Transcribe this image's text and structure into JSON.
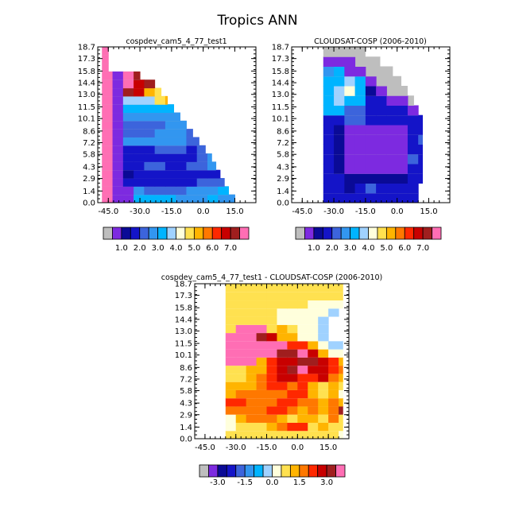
{
  "figure_title": "Tropics ANN",
  "chart_data": [
    {
      "type": "heatmap",
      "id": "model",
      "title": "cospdev_cam5_4_77_test1",
      "x_ticks": [
        "-45.0",
        "-30.0",
        "-15.0",
        "0.0",
        "15.0"
      ],
      "y_ticks": [
        "0.0",
        "1.4",
        "2.9",
        "4.3",
        "5.8",
        "7.2",
        "8.6",
        "10.1",
        "11.5",
        "13.0",
        "14.4",
        "15.8",
        "17.3",
        "18.7"
      ],
      "x_range": [
        -50,
        25
      ],
      "y_range": [
        0,
        18.7
      ],
      "colorbar_labels": [
        "1.0",
        "2.0",
        "3.0",
        "4.0",
        "5.0",
        "6.0",
        "7.0"
      ],
      "colorbar_colors": [
        "#bebebe",
        "#7d2ae0",
        "#0a0a96",
        "#1414c8",
        "#3c64dc",
        "#3296f0",
        "#00b4ff",
        "#a0d2ff",
        "#ffffdc",
        "#ffe150",
        "#ffb400",
        "#ff7800",
        "#ff2800",
        "#c80000",
        "#a01e1e",
        "#ff6eb4"
      ],
      "missing_color": "#bebebe",
      "row_spans": [
        [
          -48,
          15
        ],
        [
          -48,
          12
        ],
        [
          -48,
          10
        ],
        [
          -48,
          8
        ],
        [
          -48,
          6
        ],
        [
          -48,
          4
        ],
        [
          -48,
          1
        ],
        [
          -48,
          -2
        ],
        [
          -48,
          -5
        ],
        [
          -48,
          -8
        ],
        [
          -48,
          -11
        ],
        [
          -48,
          -14
        ],
        [
          -48,
          -17
        ],
        [
          -48,
          -20
        ],
        [
          -48,
          -23
        ],
        [
          -48,
          -30
        ],
        [
          -48,
          -45
        ],
        [
          -48,
          -45
        ],
        [
          -48,
          -45
        ]
      ],
      "rows": [
        "aAAFFFFEEEFEEEGFE",
        "aAAEDDDDEEEFDGHFG",
        "aACCCCCCCDDDEFHGH",
        "aABCCCCCCCCCDEFGH",
        "aACCDDCCDDEEFFGHI",
        "aACCCCCCCDEFFFGH",
        "aACCCDDDCDEEFEG",
        "aAEEEEEEDDEEEFH",
        "aADDDEEEDEEEEFG",
        "aADDDDEEEEEGGHI",
        "aAEEEEEEFHHIH",
        "aAFFFFFHHIJKL",
        "aAGGGIJKLMN",
        "aANMJIJLMO",
        "aAOMNMLOP",
        "aAONMLP",
        "a",
        "a",
        "a"
      ]
    },
    {
      "type": "heatmap",
      "id": "obs",
      "title": "CLOUDSAT-COSP (2006-2010)",
      "x_ticks": [
        "-45.0",
        "-30.0",
        "-15.0",
        "0.0",
        "15.0"
      ],
      "y_ticks": [
        "0.0",
        "1.4",
        "2.9",
        "4.3",
        "5.8",
        "7.2",
        "8.6",
        "10.1",
        "11.5",
        "13.0",
        "14.4",
        "15.8",
        "17.3",
        "18.7"
      ],
      "x_range": [
        -50,
        25
      ],
      "y_range": [
        0,
        18.7
      ],
      "colorbar_labels": [
        "1.0",
        "2.0",
        "3.0",
        "4.0",
        "5.0",
        "6.0",
        "7.0"
      ],
      "colorbar_colors": [
        "#bebebe",
        "#7d2ae0",
        "#0a0a96",
        "#1414c8",
        "#3c64dc",
        "#3296f0",
        "#00b4ff",
        "#a0d2ff",
        "#ffffdc",
        "#ffe150",
        "#ffb400",
        "#ff7800",
        "#ff2800",
        "#c80000",
        "#a01e1e",
        "#ff6eb4"
      ],
      "missing_color": "#bebebe",
      "row_spans": [
        [
          -35,
          10
        ],
        [
          -35,
          10
        ],
        [
          -35,
          12
        ],
        [
          -35,
          12
        ],
        [
          -35,
          12
        ],
        [
          -35,
          12
        ],
        [
          -35,
          12
        ],
        [
          -35,
          12
        ],
        [
          -35,
          12
        ],
        [
          -35,
          10
        ],
        [
          -35,
          8
        ],
        [
          -35,
          5
        ],
        [
          -35,
          2
        ],
        [
          -35,
          -2
        ],
        [
          -35,
          -8
        ],
        [
          -35,
          -15
        ]
      ],
      "rows": [
        "CCCCCCCCC",
        "CCBCDCCCCC",
        "CCBBBBBBCCBC",
        "CBAAAAAACCCA",
        "CBAAAAAADCCA",
        "CBAAAAAACCCA",
        "CBAAAAAACDCA",
        "CBAAAAAACCCA",
        "CCDDCCCCCCDA",
        "FFDDCCCCAA",
        "FGFFCCAA",
        "FGHFBA",
        "FFGFA",
        "EFAA",
        "AAA",
        ""
      ]
    },
    {
      "type": "heatmap",
      "id": "diff",
      "title": "cospdev_cam5_4_77_test1 - CLOUDSAT-COSP (2006-2010)",
      "x_ticks": [
        "-45.0",
        "-30.0",
        "-15.0",
        "0.0",
        "15.0"
      ],
      "y_ticks": [
        "0.0",
        "1.4",
        "2.9",
        "4.3",
        "5.8",
        "7.2",
        "8.6",
        "10.1",
        "11.5",
        "13.0",
        "14.4",
        "15.8",
        "17.3",
        "18.7"
      ],
      "x_range": [
        -50,
        25
      ],
      "y_range": [
        0,
        18.7
      ],
      "colorbar_labels": [
        "-3.0",
        "-1.5",
        "0.0",
        "1.5",
        "3.0"
      ],
      "colorbar_colors": [
        "#bebebe",
        "#7d2ae0",
        "#0a0a96",
        "#1414c8",
        "#3c64dc",
        "#3296f0",
        "#00b4ff",
        "#a0d2ff",
        "#ffffdc",
        "#ffe150",
        "#ffb400",
        "#ff7800",
        "#ff2800",
        "#c80000",
        "#a01e1e",
        "#ff6eb4"
      ],
      "missing_color": "#ffffff",
      "row_spans": [
        [
          -35,
          22
        ],
        [
          -35,
          22
        ],
        [
          -35,
          22
        ],
        [
          -35,
          22
        ],
        [
          -35,
          22
        ],
        [
          -35,
          22
        ],
        [
          -35,
          22
        ],
        [
          -35,
          22
        ],
        [
          -35,
          22
        ],
        [
          -35,
          22
        ],
        [
          -35,
          22
        ],
        [
          -35,
          22
        ],
        [
          -35,
          22
        ],
        [
          -35,
          22
        ],
        [
          -35,
          22
        ],
        [
          -35,
          22
        ],
        [
          -35,
          22
        ],
        [
          -35,
          22
        ],
        [
          -35,
          22
        ]
      ],
      "rows": [
        "IIIIIIIIIIIHIIIHIHHG",
        "HIIIJKLLIJIILHIHGHH",
        "HJKKKJIJJIKIIMGHG",
        "KKKKLLKJKJKNOPHHG",
        "LLKKKLLKKJKJKMOHG",
        "JKKKKKLLJIJHKMPHG",
        "JJJKLLKLJIJIIHIHG",
        "IIJKLMMLLMKJKHHG",
        "IIJJLMNOMMLKIHGG",
        "PPPJLMMNNMLJHGG",
        "PPPPPNNOMJHHG",
        "PPPPPPLLJHGG",
        "PPPNMJJHHG",
        "IPPPIJIHHG",
        "IIIIIHHHHG",
        "IIIIIHHHHHG",
        "IIIIIIIIHHHHG",
        "IIIIIIIIIIIIG",
        "IIIIIIIIIIIIG"
      ]
    }
  ]
}
